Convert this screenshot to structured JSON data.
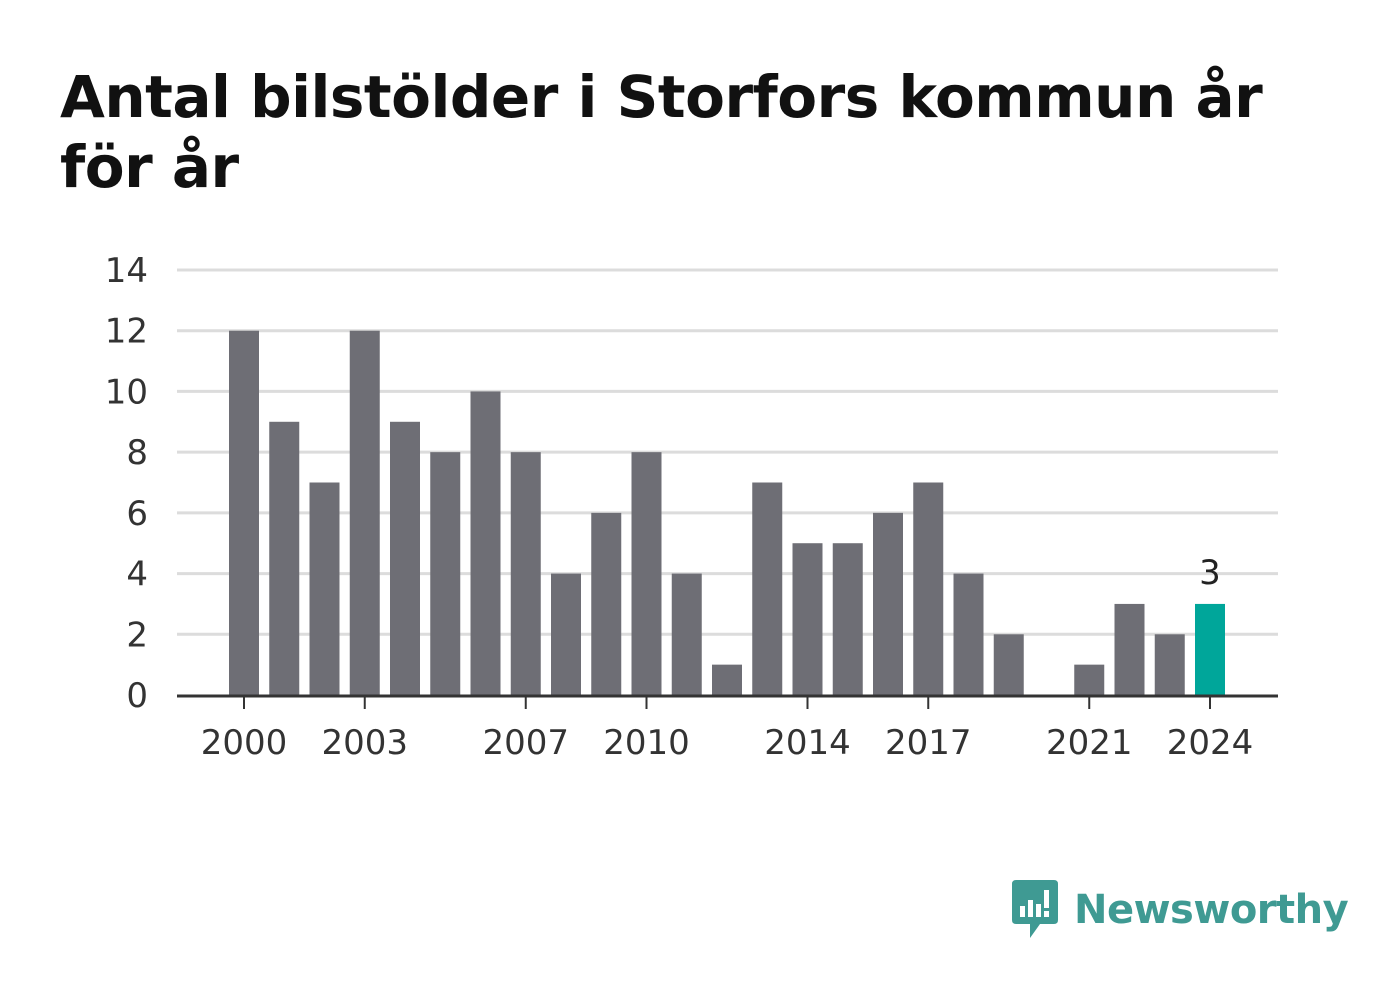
{
  "title": "Antal bilstölder i Storfors kommun år för år",
  "brand": {
    "name": "Newsworthy",
    "icon": "newsworthy-logo-icon"
  },
  "colors": {
    "bar": "#6e6e75",
    "highlight": "#00a69a",
    "grid": "#dcdcdc",
    "axis": "#333333"
  },
  "chart_data": {
    "type": "bar",
    "x": [
      2000,
      2001,
      2002,
      2003,
      2004,
      2005,
      2006,
      2007,
      2008,
      2009,
      2010,
      2011,
      2012,
      2013,
      2014,
      2015,
      2016,
      2017,
      2018,
      2019,
      2020,
      2021,
      2022,
      2023,
      2024
    ],
    "values": [
      12,
      9,
      7,
      12,
      9,
      8,
      10,
      8,
      4,
      6,
      8,
      4,
      1,
      7,
      5,
      5,
      6,
      7,
      4,
      2,
      0,
      1,
      3,
      2,
      3
    ],
    "x_tick_labels": [
      "2000",
      "2003",
      "2007",
      "2010",
      "2014",
      "2017",
      "2021",
      "2024"
    ],
    "y_ticks": [
      0,
      2,
      4,
      6,
      8,
      10,
      12,
      14
    ],
    "ylim": [
      0,
      14
    ],
    "highlight": {
      "x": 2024,
      "label": "3"
    },
    "title": "Antal bilstölder i Storfors kommun år för år",
    "xlabel": "",
    "ylabel": "",
    "grid": true
  }
}
